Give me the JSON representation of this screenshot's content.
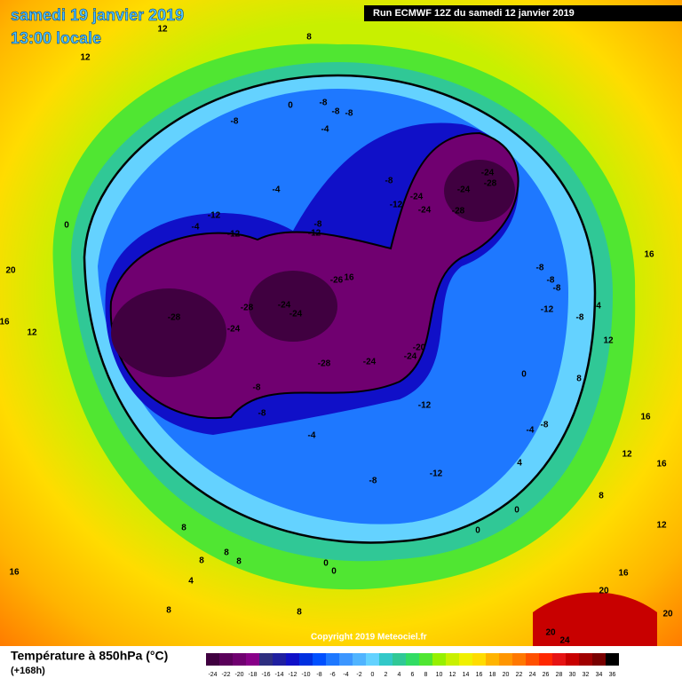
{
  "header": {
    "title": "samedi 19 janvier 2019",
    "subtitle": "13:00 locale",
    "run": "Run ECMWF 12Z du samedi 12 janvier 2019"
  },
  "copyright": "Copyright 2019 Meteociel.fr",
  "footer": {
    "label": "Température à 850hPa (°C)",
    "lead": "(+168h)"
  },
  "legend": {
    "ticks": [
      -24,
      -22,
      -20,
      -18,
      -16,
      -14,
      -12,
      -10,
      -8,
      -6,
      -4,
      -2,
      0,
      2,
      4,
      6,
      8,
      10,
      12,
      14,
      16,
      18,
      20,
      22,
      24,
      26,
      28,
      30,
      32,
      34,
      36
    ],
    "colors": [
      "#400040",
      "#5a005a",
      "#700070",
      "#880088",
      "#2e2e80",
      "#1f1fa0",
      "#1010c8",
      "#0030e0",
      "#0050ff",
      "#1e78ff",
      "#3c96ff",
      "#50b4ff",
      "#64d2ff",
      "#32c8c8",
      "#30c896",
      "#32dc64",
      "#50e632",
      "#96f000",
      "#c8f000",
      "#f0f000",
      "#ffdc00",
      "#ffb400",
      "#ff9600",
      "#ff7800",
      "#ff5000",
      "#ff2800",
      "#e61414",
      "#c80000",
      "#a00000",
      "#780000",
      "#000000"
    ]
  },
  "map_labels": [
    "-28",
    "-28",
    "-24",
    "-24",
    "-24",
    "-28",
    "-24",
    "-24",
    "-20",
    "-26",
    "16",
    "-24",
    "-28",
    "-24",
    "-24",
    "-24",
    "-28",
    "-12",
    "-8",
    "-8",
    "-8",
    "-8",
    "-4",
    "-8",
    "0",
    "-12",
    "-12",
    "-4",
    "-8",
    "-12",
    "-4",
    "-8",
    "-8",
    "-8",
    "-12",
    "-8",
    "-8",
    "-8",
    "-4",
    "-12",
    "-12",
    "-8",
    "-4",
    "-8",
    "12",
    "16",
    "16",
    "16",
    "12",
    "12",
    "8",
    "20",
    "16",
    "12",
    "0",
    "12",
    "12",
    "8",
    "8",
    "8",
    "8",
    "8",
    "4",
    "8",
    "8",
    "0",
    "0",
    "0",
    "0",
    "16",
    "16",
    "20",
    "20",
    "20",
    "24",
    "4",
    "0",
    "8",
    "4"
  ]
}
